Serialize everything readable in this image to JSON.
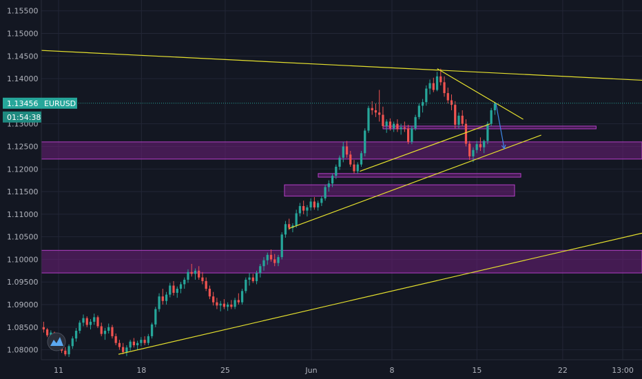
{
  "chart_data": {
    "type": "candlestick",
    "symbol": "EURUSD",
    "current_price": "1.13456",
    "countdown": "01:54:38",
    "y_ticks": [
      "1.15500",
      "1.15000",
      "1.14500",
      "1.14000",
      "1.13000",
      "1.12500",
      "1.12000",
      "1.11500",
      "1.11000",
      "1.10500",
      "1.10000",
      "1.09500",
      "1.09000",
      "1.08500",
      "1.08000"
    ],
    "x_ticks": [
      "11",
      "18",
      "25",
      "Jun",
      "8",
      "15",
      "22",
      "13:00"
    ],
    "ylim": [
      1.0778,
      1.1574
    ],
    "grid": true,
    "colors": {
      "background": "#131722",
      "up_candle": "#26a69a",
      "down_candle": "#ef5350",
      "trendline": "#e6e12e",
      "zone_fill": "#6d1f7a",
      "zone_border": "#b53fc7",
      "price_line": "#26a69a",
      "arrow": "#3f88e8"
    },
    "zones": [
      {
        "y1": 1.126,
        "y2": 1.1222
      },
      {
        "y1": 1.102,
        "y2": 1.097
      },
      {
        "y1": 1.1295,
        "y2": 1.129
      },
      {
        "y1": 1.119,
        "y2": 1.1182
      },
      {
        "y1": 1.1165,
        "y2": 1.114
      }
    ],
    "candles": [
      [
        1.085,
        1.0862,
        1.0838,
        1.0845
      ],
      [
        1.0845,
        1.0848,
        1.0828,
        1.0832
      ],
      [
        1.0832,
        1.0843,
        1.0818,
        1.0838
      ],
      [
        1.0838,
        1.084,
        1.0812,
        1.0818
      ],
      [
        1.0818,
        1.0826,
        1.08,
        1.0808
      ],
      [
        1.0808,
        1.0815,
        1.0793,
        1.0798
      ],
      [
        1.0798,
        1.0806,
        1.0786,
        1.079
      ],
      [
        1.079,
        1.0812,
        1.0784,
        1.0808
      ],
      [
        1.0808,
        1.083,
        1.0802,
        1.0825
      ],
      [
        1.0825,
        1.0848,
        1.0818,
        1.0842
      ],
      [
        1.0842,
        1.0865,
        1.0836,
        1.086
      ],
      [
        1.086,
        1.0878,
        1.0852,
        1.087
      ],
      [
        1.087,
        1.0874,
        1.085,
        1.0855
      ],
      [
        1.0855,
        1.0868,
        1.0845,
        1.0862
      ],
      [
        1.0862,
        1.088,
        1.0855,
        1.0872
      ],
      [
        1.0872,
        1.0876,
        1.0848,
        1.0852
      ],
      [
        1.0852,
        1.086,
        1.083,
        1.0835
      ],
      [
        1.0835,
        1.0848,
        1.0822,
        1.0842
      ],
      [
        1.0842,
        1.0858,
        1.0836,
        1.085
      ],
      [
        1.085,
        1.0855,
        1.0825,
        1.083
      ],
      [
        1.083,
        1.0836,
        1.081,
        1.0815
      ],
      [
        1.0815,
        1.0822,
        1.08,
        1.0806
      ],
      [
        1.0806,
        1.0815,
        1.079,
        1.0795
      ],
      [
        1.0795,
        1.081,
        1.0786,
        1.0805
      ],
      [
        1.0805,
        1.0822,
        1.0798,
        1.0818
      ],
      [
        1.0818,
        1.0826,
        1.0805,
        1.081
      ],
      [
        1.081,
        1.082,
        1.08,
        1.0815
      ],
      [
        1.0815,
        1.0828,
        1.0808,
        1.0822
      ],
      [
        1.0822,
        1.083,
        1.081,
        1.0815
      ],
      [
        1.0815,
        1.0835,
        1.081,
        1.083
      ],
      [
        1.083,
        1.086,
        1.0825,
        1.0856
      ],
      [
        1.0856,
        1.0895,
        1.085,
        1.089
      ],
      [
        1.089,
        1.0925,
        1.0884,
        1.0918
      ],
      [
        1.0918,
        1.0935,
        1.09,
        1.0908
      ],
      [
        1.0908,
        1.0928,
        1.09,
        1.0922
      ],
      [
        1.0922,
        1.0948,
        1.0916,
        1.0942
      ],
      [
        1.0942,
        1.0952,
        1.092,
        1.0926
      ],
      [
        1.0926,
        1.094,
        1.0915,
        1.0935
      ],
      [
        1.0935,
        1.095,
        1.0925,
        1.0945
      ],
      [
        1.0945,
        1.096,
        1.0935,
        1.0955
      ],
      [
        1.0955,
        1.0978,
        1.0948,
        1.0972
      ],
      [
        1.0972,
        1.099,
        1.0962,
        1.0968
      ],
      [
        1.0968,
        1.098,
        1.0955,
        1.0975
      ],
      [
        1.0975,
        1.0985,
        1.0955,
        1.096
      ],
      [
        1.096,
        1.0972,
        1.0945,
        1.0952
      ],
      [
        1.0952,
        1.096,
        1.093,
        1.0935
      ],
      [
        1.0935,
        1.0942,
        1.0912,
        1.0918
      ],
      [
        1.0918,
        1.0928,
        1.0898,
        1.0905
      ],
      [
        1.0905,
        1.0915,
        1.089,
        1.0898
      ],
      [
        1.0898,
        1.0908,
        1.0885,
        1.0902
      ],
      [
        1.0902,
        1.0912,
        1.089,
        1.0895
      ],
      [
        1.0895,
        1.0905,
        1.0886,
        1.09
      ],
      [
        1.09,
        1.091,
        1.089,
        1.0895
      ],
      [
        1.0895,
        1.0915,
        1.089,
        1.091
      ],
      [
        1.091,
        1.0925,
        1.09,
        1.0905
      ],
      [
        1.0905,
        1.0935,
        1.09,
        1.093
      ],
      [
        1.093,
        1.096,
        1.0925,
        1.0955
      ],
      [
        1.0955,
        1.097,
        1.0942,
        1.096
      ],
      [
        1.096,
        1.0968,
        1.0948,
        1.0952
      ],
      [
        1.0952,
        1.0975,
        1.0945,
        1.097
      ],
      [
        1.097,
        1.099,
        1.096,
        1.0985
      ],
      [
        1.0985,
        1.1005,
        1.0975,
        1.0998
      ],
      [
        1.0998,
        1.1015,
        1.0988,
        1.101
      ],
      [
        1.101,
        1.1022,
        1.0995,
        1.1
      ],
      [
        1.1,
        1.1012,
        1.0985,
        1.0992
      ],
      [
        1.0992,
        1.101,
        1.0985,
        1.1005
      ],
      [
        1.1005,
        1.106,
        1.1,
        1.1055
      ],
      [
        1.1055,
        1.1085,
        1.1048,
        1.1078
      ],
      [
        1.1078,
        1.109,
        1.1065,
        1.107
      ],
      [
        1.107,
        1.108,
        1.106,
        1.1075
      ],
      [
        1.1075,
        1.111,
        1.107,
        1.1102
      ],
      [
        1.1102,
        1.1125,
        1.1095,
        1.1118
      ],
      [
        1.1118,
        1.113,
        1.11,
        1.1108
      ],
      [
        1.1108,
        1.112,
        1.1095,
        1.1115
      ],
      [
        1.1115,
        1.1135,
        1.1108,
        1.1128
      ],
      [
        1.1128,
        1.1138,
        1.111,
        1.1115
      ],
      [
        1.1115,
        1.113,
        1.1108,
        1.1125
      ],
      [
        1.1125,
        1.114,
        1.1118,
        1.1135
      ],
      [
        1.1135,
        1.1165,
        1.113,
        1.116
      ],
      [
        1.116,
        1.1175,
        1.115,
        1.1168
      ],
      [
        1.1168,
        1.119,
        1.116,
        1.1185
      ],
      [
        1.1185,
        1.121,
        1.1178,
        1.1205
      ],
      [
        1.1205,
        1.123,
        1.1198,
        1.1225
      ],
      [
        1.1225,
        1.126,
        1.1215,
        1.125
      ],
      [
        1.125,
        1.1262,
        1.1225,
        1.1232
      ],
      [
        1.1232,
        1.124,
        1.1205,
        1.121
      ],
      [
        1.121,
        1.122,
        1.119,
        1.1195
      ],
      [
        1.1195,
        1.1215,
        1.119,
        1.121
      ],
      [
        1.121,
        1.124,
        1.1205,
        1.1235
      ],
      [
        1.1235,
        1.129,
        1.1228,
        1.1285
      ],
      [
        1.1285,
        1.134,
        1.128,
        1.1335
      ],
      [
        1.1335,
        1.135,
        1.132,
        1.133
      ],
      [
        1.133,
        1.1345,
        1.1315,
        1.1325
      ],
      [
        1.1325,
        1.1375,
        1.1305,
        1.132
      ],
      [
        1.132,
        1.1338,
        1.129,
        1.1295
      ],
      [
        1.1295,
        1.131,
        1.128,
        1.1305
      ],
      [
        1.1305,
        1.1312,
        1.1285,
        1.129
      ],
      [
        1.129,
        1.1305,
        1.1282,
        1.13
      ],
      [
        1.13,
        1.131,
        1.1282,
        1.1288
      ],
      [
        1.1288,
        1.13,
        1.1276,
        1.1292
      ],
      [
        1.1292,
        1.1305,
        1.1282,
        1.129
      ],
      [
        1.129,
        1.1298,
        1.1255,
        1.126
      ],
      [
        1.126,
        1.1295,
        1.1255,
        1.129
      ],
      [
        1.129,
        1.132,
        1.1285,
        1.1315
      ],
      [
        1.1315,
        1.1345,
        1.131,
        1.134
      ],
      [
        1.134,
        1.1355,
        1.1325,
        1.1348
      ],
      [
        1.1348,
        1.1385,
        1.134,
        1.1378
      ],
      [
        1.1378,
        1.1398,
        1.1365,
        1.139
      ],
      [
        1.139,
        1.1402,
        1.137,
        1.1375
      ],
      [
        1.1375,
        1.1415,
        1.1372,
        1.1405
      ],
      [
        1.1405,
        1.1422,
        1.1385,
        1.1392
      ],
      [
        1.1392,
        1.1405,
        1.136,
        1.1368
      ],
      [
        1.1368,
        1.138,
        1.1345,
        1.1352
      ],
      [
        1.1352,
        1.1365,
        1.133,
        1.1342
      ],
      [
        1.1342,
        1.135,
        1.129,
        1.1298
      ],
      [
        1.1298,
        1.1325,
        1.129,
        1.1318
      ],
      [
        1.1318,
        1.133,
        1.1295,
        1.13
      ],
      [
        1.13,
        1.131,
        1.125,
        1.1256
      ],
      [
        1.1256,
        1.1262,
        1.122,
        1.1228
      ],
      [
        1.1228,
        1.1248,
        1.1215,
        1.1242
      ],
      [
        1.1242,
        1.1262,
        1.1235,
        1.1255
      ],
      [
        1.1255,
        1.127,
        1.124,
        1.1248
      ],
      [
        1.1248,
        1.1265,
        1.1235,
        1.1262
      ],
      [
        1.1262,
        1.1305,
        1.1255,
        1.13
      ],
      [
        1.13,
        1.1335,
        1.1295,
        1.133
      ],
      [
        1.133,
        1.1348,
        1.132,
        1.1345
      ]
    ],
    "trendlines": [
      {
        "x1": 0.0,
        "y1": 1.1467,
        "x2": 1.02,
        "y2": 1.1395
      },
      {
        "x1": 0.4495,
        "y1": 1.1068,
        "x2": 0.843,
        "y2": 1.1275
      },
      {
        "x1": 0.5605,
        "y1": 1.1195,
        "x2": 0.7635,
        "y2": 1.13
      },
      {
        "x1": 0.681,
        "y1": 1.1422,
        "x2": 0.815,
        "y2": 1.131
      },
      {
        "x1": 0.1845,
        "y1": 1.079,
        "x2": 1.0,
        "y2": 1.1058
      }
    ],
    "projection_arrow": {
      "x1": 0.7725,
      "y1": 1.1345,
      "x2": 0.7855,
      "y2": 1.1245
    }
  }
}
